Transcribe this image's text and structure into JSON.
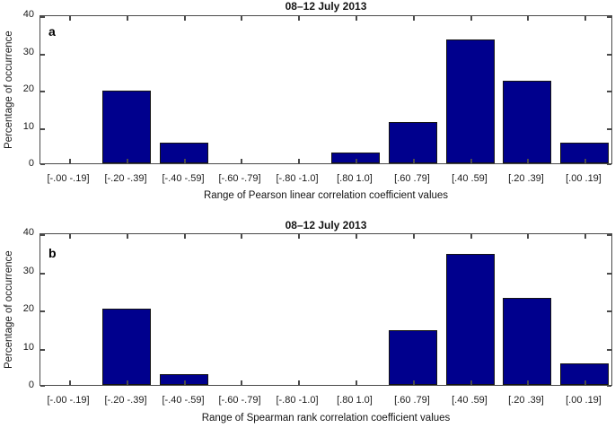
{
  "figure": {
    "background": "#ffffff",
    "bar_fill": "#00008d",
    "bar_edge": "#141414",
    "axis_color": "#4a4a4a",
    "text_color": "#1a1a1a"
  },
  "chart_data": [
    {
      "type": "bar",
      "panel": "a",
      "title": "08–12 July 2013",
      "xlabel": "Range of Pearson linear correlation coefficient values",
      "ylabel": "Percentage of occurrence",
      "ylim": [
        0,
        40
      ],
      "yticks": [
        0,
        10,
        20,
        30,
        40
      ],
      "grid": false,
      "legend_position": "none",
      "categories": [
        "[-.00 -.19]",
        "[-.20 -.39]",
        "[-.40 -.59]",
        "[-.60 -.79]",
        "[-.80 -1.0]",
        "[.80 1.0]",
        "[.60 .79]",
        "[.40 .59]",
        "[.20 .39]",
        "[.00 .19]"
      ],
      "values": [
        0,
        19.4,
        5.6,
        0,
        0,
        2.8,
        11.1,
        33.3,
        22.2,
        5.6
      ]
    },
    {
      "type": "bar",
      "panel": "b",
      "title": "08–12 July 2013",
      "xlabel": "Range of Spearman rank correlation coefficient values",
      "ylabel": "Percentage of occurrence",
      "ylim": [
        0,
        40
      ],
      "yticks": [
        0,
        10,
        20,
        30,
        40
      ],
      "grid": false,
      "legend_position": "none",
      "categories": [
        "[-.00 -.19]",
        "[-.20 -.39]",
        "[-.40 -.59]",
        "[-.60 -.79]",
        "[-.80 -1.0]",
        "[.80 1.0]",
        "[.60 .79]",
        "[.40 .59]",
        "[.20 .39]",
        "[.00 .19]"
      ],
      "values": [
        0,
        20.0,
        2.9,
        0,
        0,
        0,
        14.3,
        34.3,
        22.9,
        5.7
      ]
    }
  ]
}
